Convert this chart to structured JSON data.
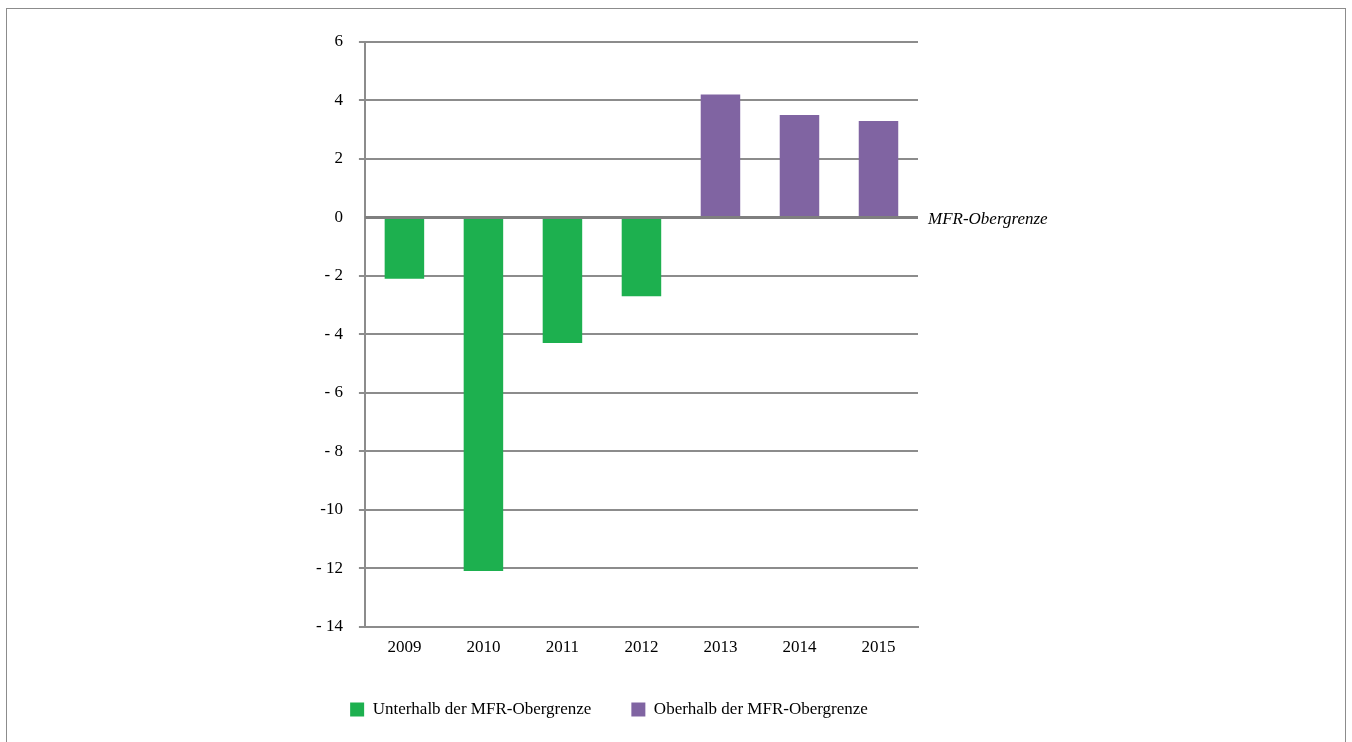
{
  "chart_data": {
    "type": "bar",
    "categories": [
      "2009",
      "2010",
      "2011",
      "2012",
      "2013",
      "2014",
      "2015"
    ],
    "series": [
      {
        "name": "Unterhalb der MFR-Obergrenze",
        "color": "#1db04f",
        "values": [
          -2.1,
          -12.1,
          -4.3,
          -2.7,
          null,
          null,
          null
        ]
      },
      {
        "name": "Oberhalb der MFR-Obergrenze",
        "color": "#8064a2",
        "values": [
          null,
          null,
          null,
          null,
          4.2,
          3.5,
          3.3
        ]
      }
    ],
    "ylim": [
      -14,
      6
    ],
    "yticks": [
      {
        "value": -14,
        "label": "- 14"
      },
      {
        "value": -12,
        "label": "- 12"
      },
      {
        "value": -10,
        "label": "-10"
      },
      {
        "value": -8,
        "label": "- 8"
      },
      {
        "value": -6,
        "label": "- 6"
      },
      {
        "value": -4,
        "label": "- 4"
      },
      {
        "value": -2,
        "label": "- 2"
      },
      0,
      2,
      4,
      6
    ],
    "grid": "y",
    "legend": "bottom",
    "ref_lines": [
      {
        "axis": "y",
        "value": 0,
        "label": "MFR-Obergrenze",
        "color": "#7f7f7f"
      }
    ]
  }
}
